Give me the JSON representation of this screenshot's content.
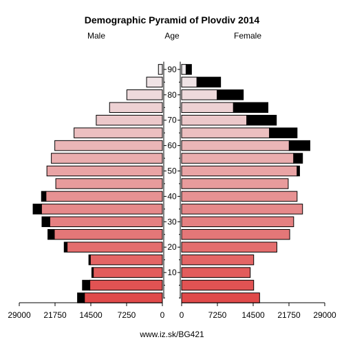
{
  "chart_data": {
    "type": "bar",
    "title": "Demographic Pyramid of Plovdiv 2014",
    "left_label": "Male",
    "center_label": "Age",
    "right_label": "Female",
    "footer": "www.iz.sk/BG421",
    "xlim": [
      0,
      29000
    ],
    "x_tick_values": [
      0,
      7250,
      14500,
      21750,
      29000
    ],
    "x_tick_labels_left": [
      "29000",
      "21750",
      "14500",
      "7250",
      "0"
    ],
    "x_tick_labels_right": [
      "0",
      "7250",
      "14500",
      "21750",
      "29000"
    ],
    "age_tick_labels": [
      "10",
      "20",
      "30",
      "40",
      "50",
      "60",
      "70",
      "80",
      "90"
    ],
    "age_groups": [
      "0-4",
      "5-9",
      "10-14",
      "15-19",
      "20-24",
      "25-29",
      "30-34",
      "35-39",
      "40-44",
      "45-49",
      "50-54",
      "55-59",
      "60-64",
      "65-69",
      "70-74",
      "75-79",
      "80-84",
      "85-89",
      "90+"
    ],
    "series": [
      {
        "name": "Male",
        "values": [
          15800,
          14700,
          14000,
          14600,
          19300,
          21900,
          22800,
          24500,
          23600,
          21600,
          23400,
          22500,
          21800,
          17900,
          13400,
          10700,
          7200,
          3200,
          800
        ]
      },
      {
        "name": "Male excess",
        "values": [
          1400,
          1500,
          300,
          300,
          600,
          1300,
          1600,
          1700,
          900,
          0,
          0,
          0,
          0,
          0,
          0,
          0,
          0,
          0,
          0
        ]
      },
      {
        "name": "Female",
        "values": [
          15800,
          14600,
          13900,
          14600,
          19300,
          21900,
          22700,
          24500,
          23400,
          21600,
          23400,
          22700,
          21800,
          17800,
          13200,
          10500,
          7200,
          3100,
          900
        ]
      },
      {
        "name": "Female excess",
        "values": [
          0,
          0,
          0,
          0,
          0,
          0,
          0,
          0,
          0,
          0,
          500,
          1800,
          4200,
          5600,
          6000,
          7000,
          5300,
          4800,
          1100
        ]
      }
    ],
    "gradient": {
      "young": "#e04a4a",
      "old": "#f0ecee"
    }
  }
}
